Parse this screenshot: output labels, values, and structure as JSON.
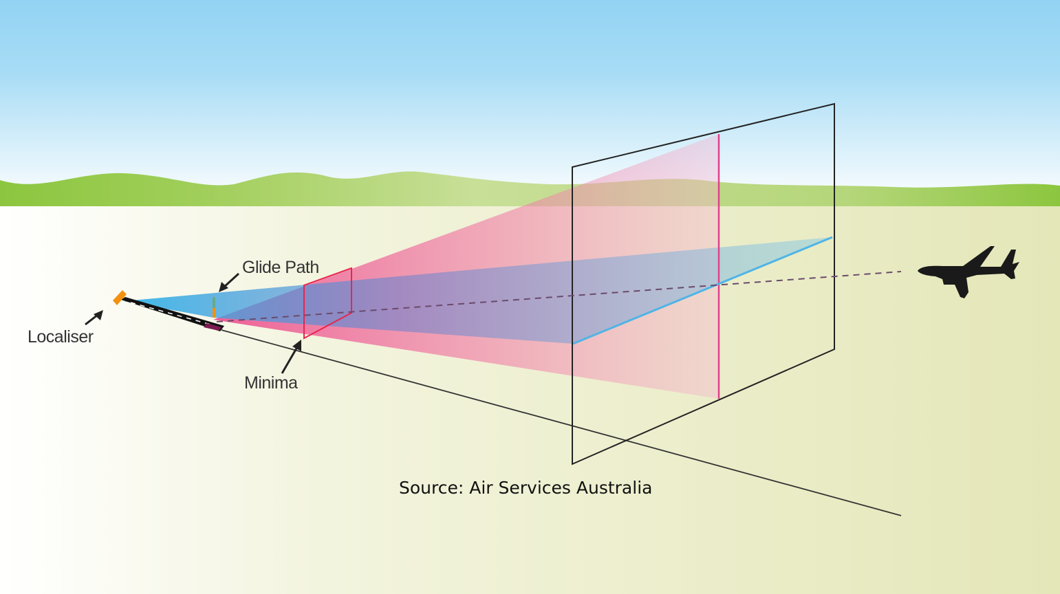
{
  "labels": {
    "glide_path": "Glide Path",
    "localiser": "Localiser",
    "minima": "Minima"
  },
  "source": "Source: Air Services Australia",
  "colors": {
    "sky": "#93d3f3",
    "hills": "#8dc33f",
    "ground": "#e6e9bd",
    "glide_path_plane": "#3cb8e6",
    "localiser_plane": "#ee5a91",
    "minima_frame": "#e8254f",
    "localiser_antenna": "#f29111"
  },
  "icons": [
    "airplane-icon",
    "runway-icon",
    "localiser-antenna-icon"
  ]
}
